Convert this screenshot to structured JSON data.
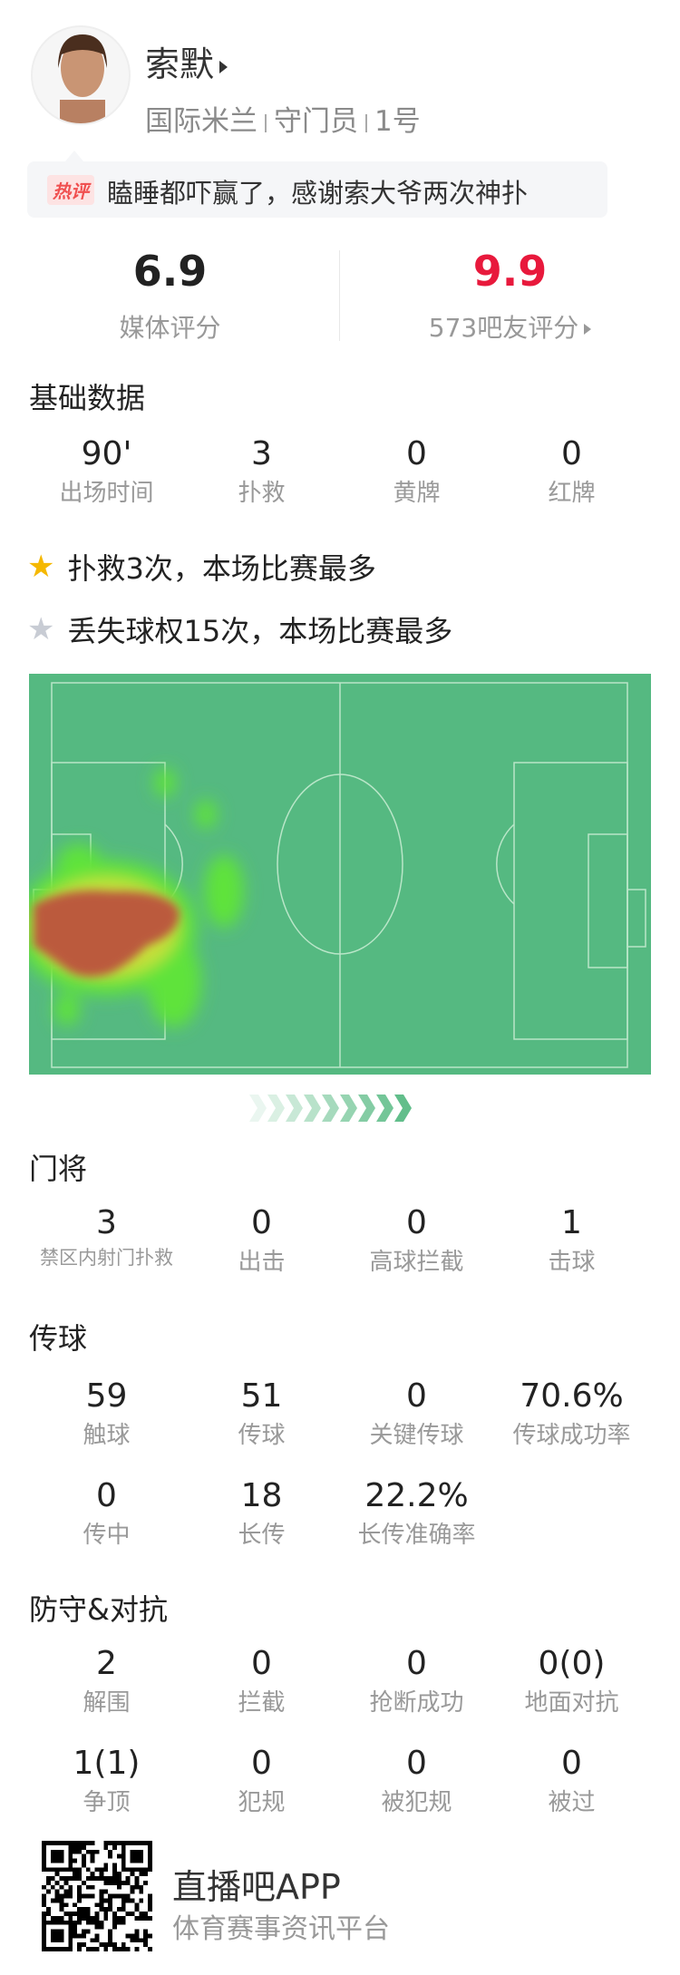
{
  "player": {
    "name": "索默",
    "team": "国际米兰",
    "position": "守门员",
    "number": "1号"
  },
  "comment": {
    "tag": "热评",
    "text": "瞌睡都吓赢了，感谢索大爷两次神扑"
  },
  "ratings": {
    "media": {
      "value": "6.9",
      "label": "媒体评分"
    },
    "fans": {
      "value": "9.9",
      "label": "573吧友评分",
      "color": "#e8193c"
    }
  },
  "basic": {
    "title": "基础数据",
    "items": [
      {
        "v": "90'",
        "l": "出场时间"
      },
      {
        "v": "3",
        "l": "扑救"
      },
      {
        "v": "0",
        "l": "黄牌"
      },
      {
        "v": "0",
        "l": "红牌"
      }
    ]
  },
  "highlights": [
    {
      "icon": "star-gold",
      "text": "扑救3次，本场比赛最多"
    },
    {
      "icon": "star-gray",
      "text": "丢失球权15次，本场比赛最多"
    }
  ],
  "goalkeeping": {
    "title": "门将",
    "items": [
      {
        "v": "3",
        "l": "禁区内射门扑救"
      },
      {
        "v": "0",
        "l": "出击"
      },
      {
        "v": "0",
        "l": "高球拦截"
      },
      {
        "v": "1",
        "l": "击球"
      }
    ]
  },
  "passing": {
    "title": "传球",
    "items": [
      {
        "v": "59",
        "l": "触球"
      },
      {
        "v": "51",
        "l": "传球"
      },
      {
        "v": "0",
        "l": "关键传球"
      },
      {
        "v": "70.6%",
        "l": "传球成功率"
      },
      {
        "v": "0",
        "l": "传中"
      },
      {
        "v": "18",
        "l": "长传"
      },
      {
        "v": "22.2%",
        "l": "长传准确率"
      }
    ]
  },
  "defense": {
    "title": "防守&对抗",
    "items": [
      {
        "v": "2",
        "l": "解围"
      },
      {
        "v": "0",
        "l": "拦截"
      },
      {
        "v": "0",
        "l": "抢断成功"
      },
      {
        "v": "0(0)",
        "l": "地面对抗"
      },
      {
        "v": "1(1)",
        "l": "争顶"
      },
      {
        "v": "0",
        "l": "犯规"
      },
      {
        "v": "0",
        "l": "被犯规"
      },
      {
        "v": "0",
        "l": "被过"
      }
    ]
  },
  "footer": {
    "app": "直播吧APP",
    "slogan": "体育赛事资讯平台"
  },
  "colors": {
    "pitch": "#55b981",
    "accent": "#e8193c"
  }
}
